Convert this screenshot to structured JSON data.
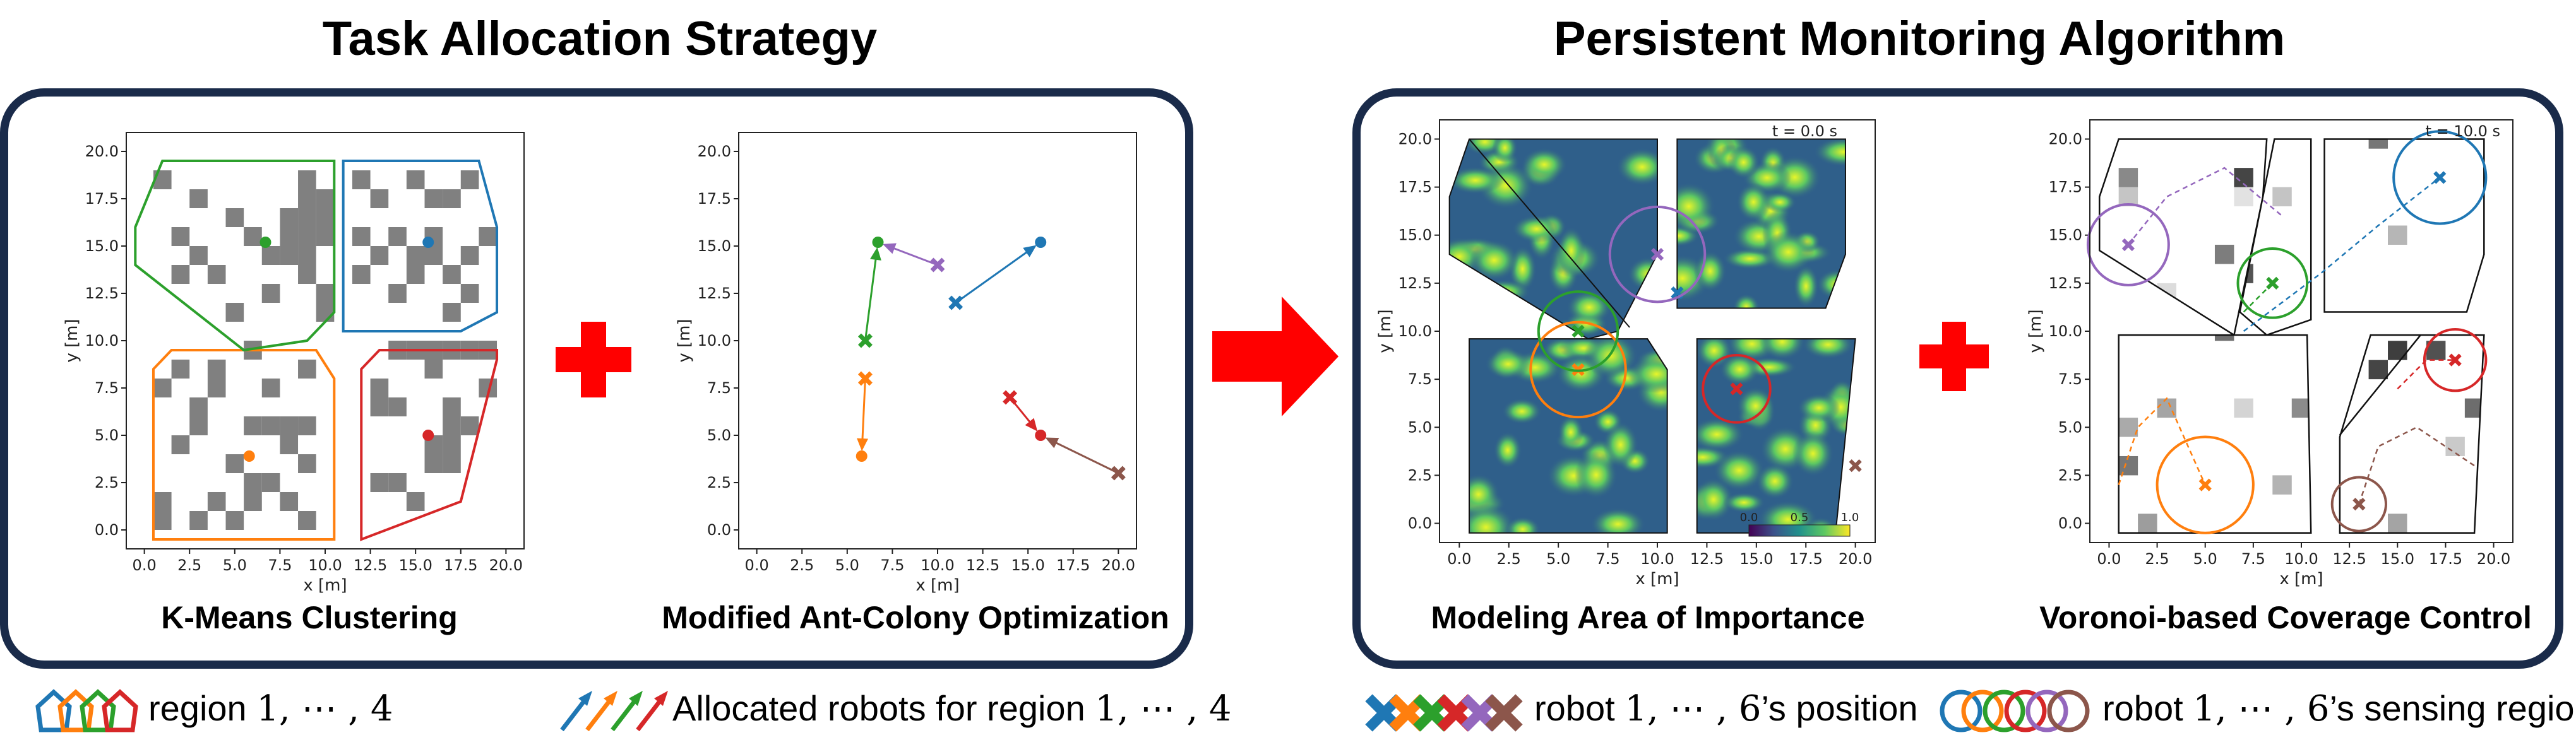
{
  "titles": {
    "left": "Task Allocation Strategy",
    "right": "Persistent Monitoring Algorithm"
  },
  "captions": {
    "kmeans": "K-Means Clustering",
    "aco": "Modified Ant-Colony Optimization",
    "importance": "Modeling Area of Importance",
    "voronoi": "Voronoi-based Coverage Control"
  },
  "time_labels": {
    "t0": "t = 0.0 s",
    "t10": "t = 10.0 s"
  },
  "colorbar": {
    "ticks": [
      "0.0",
      "0.5",
      "1.0"
    ]
  },
  "legend": {
    "region": "region",
    "region_math": "1, ⋯ , 4",
    "allocated": "Allocated robots for region",
    "allocated_math": "1, ⋯ , 4",
    "robot_pos": "robot",
    "robot_pos_math": "1, ⋯ , 6",
    "robot_pos_suffix": "’s position",
    "robot_sense": "robot",
    "robot_sense_math": "1, ⋯ , 6",
    "robot_sense_suffix": "’s sensing region"
  },
  "colors": {
    "blue": "#1f77b4",
    "orange": "#ff7f0e",
    "green": "#2ca02c",
    "red": "#d62728",
    "purple": "#9467bd",
    "brown": "#8c564b",
    "panel_border": "#1a2b4a",
    "arrow": "#ff0000",
    "plus": "#ff0000"
  },
  "chart_data": [
    {
      "type": "scatter",
      "id": "kmeans",
      "xlabel": "x [m]",
      "ylabel": "y [m]",
      "xlim": [
        -1,
        21
      ],
      "ylim": [
        -1,
        21
      ],
      "xticks": [
        0.0,
        2.5,
        5.0,
        7.5,
        10.0,
        12.5,
        15.0,
        17.5,
        20.0
      ],
      "yticks": [
        0.0,
        2.5,
        5.0,
        7.5,
        10.0,
        12.5,
        15.0,
        17.5,
        20.0
      ],
      "regions": [
        {
          "color": "blue",
          "polygon": [
            [
              11,
              19.5
            ],
            [
              18.5,
              19.5
            ],
            [
              19.5,
              16
            ],
            [
              19.5,
              11.5
            ],
            [
              17.5,
              10.5
            ],
            [
              11,
              10.5
            ]
          ]
        },
        {
          "color": "orange",
          "polygon": [
            [
              1.5,
              9.5
            ],
            [
              9.5,
              9.5
            ],
            [
              10.5,
              8
            ],
            [
              10.5,
              -0.5
            ],
            [
              0.5,
              -0.5
            ],
            [
              0.5,
              8.5
            ]
          ]
        },
        {
          "color": "green",
          "polygon": [
            [
              1,
              19.5
            ],
            [
              10.5,
              19.5
            ],
            [
              10.5,
              11.5
            ],
            [
              9,
              10
            ],
            [
              5.5,
              9.5
            ],
            [
              -0.5,
              14
            ],
            [
              -0.5,
              16
            ]
          ]
        },
        {
          "color": "red",
          "polygon": [
            [
              13,
              9.5
            ],
            [
              19.5,
              9.5
            ],
            [
              19.5,
              9
            ],
            [
              17.5,
              1.5
            ],
            [
              12,
              -0.5
            ],
            [
              12,
              8.5
            ]
          ]
        }
      ],
      "obstacles": [
        [
          1,
          18.5
        ],
        [
          3,
          17.5
        ],
        [
          5,
          16.5
        ],
        [
          6,
          15.5
        ],
        [
          7,
          14.5
        ],
        [
          8,
          16.5
        ],
        [
          8,
          15.5
        ],
        [
          8,
          14.5
        ],
        [
          9,
          18.5
        ],
        [
          9,
          17.5
        ],
        [
          9,
          16.5
        ],
        [
          9,
          15.5
        ],
        [
          9,
          14.5
        ],
        [
          9,
          13.5
        ],
        [
          10,
          17.5
        ],
        [
          10,
          16.5
        ],
        [
          10,
          15.5
        ],
        [
          2,
          15.5
        ],
        [
          3,
          14.5
        ],
        [
          4,
          13.5
        ],
        [
          7,
          12.5
        ],
        [
          10,
          12.5
        ],
        [
          10,
          11.5
        ],
        [
          5,
          11.5
        ],
        [
          2,
          13.5
        ],
        [
          12,
          18.5
        ],
        [
          13,
          17.5
        ],
        [
          15,
          18.5
        ],
        [
          16,
          17.5
        ],
        [
          17,
          17.5
        ],
        [
          18,
          18.5
        ],
        [
          12,
          15.5
        ],
        [
          13,
          14.5
        ],
        [
          14,
          15.5
        ],
        [
          15,
          14.5
        ],
        [
          15,
          13.5
        ],
        [
          16,
          15.5
        ],
        [
          16,
          14.5
        ],
        [
          17,
          13.5
        ],
        [
          18,
          14.5
        ],
        [
          19,
          15.5
        ],
        [
          12,
          13.5
        ],
        [
          14,
          12.5
        ],
        [
          17,
          11.5
        ],
        [
          18,
          12.5
        ],
        [
          1,
          7.5
        ],
        [
          2,
          8.5
        ],
        [
          3,
          6.5
        ],
        [
          4,
          7.5
        ],
        [
          4,
          8.5
        ],
        [
          6,
          9.5
        ],
        [
          7,
          7.5
        ],
        [
          9,
          8.5
        ],
        [
          3,
          5.5
        ],
        [
          6,
          5.5
        ],
        [
          7,
          5.5
        ],
        [
          8,
          5.5
        ],
        [
          9,
          5.5
        ],
        [
          8,
          4.5
        ],
        [
          9,
          3.5
        ],
        [
          2,
          4.5
        ],
        [
          5,
          3.5
        ],
        [
          1,
          1.5
        ],
        [
          3,
          0.5
        ],
        [
          4,
          1.5
        ],
        [
          6,
          2.5
        ],
        [
          7,
          2.5
        ],
        [
          9,
          0.5
        ],
        [
          1,
          0.5
        ],
        [
          5,
          0.5
        ],
        [
          8,
          1.5
        ],
        [
          6,
          1.5
        ],
        [
          14,
          9.5
        ],
        [
          15,
          9.5
        ],
        [
          16,
          9.5
        ],
        [
          17,
          9.5
        ],
        [
          18,
          9.5
        ],
        [
          19,
          9.5
        ],
        [
          13,
          7.5
        ],
        [
          13,
          6.5
        ],
        [
          14,
          6.5
        ],
        [
          16,
          8.5
        ],
        [
          17,
          6.5
        ],
        [
          17,
          5.5
        ],
        [
          17,
          4.5
        ],
        [
          17,
          3.5
        ],
        [
          16,
          4.5
        ],
        [
          16,
          3.5
        ],
        [
          13,
          2.5
        ],
        [
          14,
          2.5
        ],
        [
          15,
          1.5
        ],
        [
          18,
          5.5
        ],
        [
          19,
          7.5
        ]
      ],
      "centroids": [
        {
          "color": "green",
          "x": 6.7,
          "y": 15.2
        },
        {
          "color": "blue",
          "x": 15.7,
          "y": 15.2
        },
        {
          "color": "orange",
          "x": 5.8,
          "y": 3.9
        },
        {
          "color": "red",
          "x": 15.7,
          "y": 5.0
        }
      ]
    },
    {
      "type": "scatter",
      "id": "aco",
      "xlabel": "x [m]",
      "ylabel": "y [m]",
      "xlim": [
        -1,
        21
      ],
      "ylim": [
        -1,
        21
      ],
      "xticks": [
        0.0,
        2.5,
        5.0,
        7.5,
        10.0,
        12.5,
        15.0,
        17.5,
        20.0
      ],
      "yticks": [
        0.0,
        2.5,
        5.0,
        7.5,
        10.0,
        12.5,
        15.0,
        17.5,
        20.0
      ],
      "robots": [
        {
          "color": "blue",
          "x": 11.0,
          "y": 12.0
        },
        {
          "color": "orange",
          "x": 6.0,
          "y": 8.0
        },
        {
          "color": "green",
          "x": 6.0,
          "y": 10.0
        },
        {
          "color": "purple",
          "x": 10.0,
          "y": 14.0
        },
        {
          "color": "red",
          "x": 14.0,
          "y": 7.0
        },
        {
          "color": "brown",
          "x": 20.0,
          "y": 3.0
        }
      ],
      "arrows": [
        {
          "color": "blue",
          "from": [
            11.0,
            12.0
          ],
          "to": [
            15.7,
            15.2
          ]
        },
        {
          "color": "orange",
          "from": [
            6.0,
            8.0
          ],
          "to": [
            5.8,
            3.9
          ]
        },
        {
          "color": "green",
          "from": [
            6.0,
            10.0
          ],
          "to": [
            6.7,
            15.2
          ]
        },
        {
          "color": "purple",
          "from": [
            10.0,
            14.0
          ],
          "to": [
            6.7,
            15.2
          ]
        },
        {
          "color": "red",
          "from": [
            14.0,
            7.0
          ],
          "to": [
            15.7,
            5.0
          ]
        },
        {
          "color": "brown",
          "from": [
            20.0,
            3.0
          ],
          "to": [
            15.7,
            5.0
          ]
        }
      ],
      "targets": [
        {
          "color": "blue",
          "x": 15.7,
          "y": 15.2
        },
        {
          "color": "orange",
          "x": 5.8,
          "y": 3.9
        },
        {
          "color": "green",
          "x": 6.7,
          "y": 15.2
        },
        {
          "color": "red",
          "x": 15.7,
          "y": 5.0
        }
      ]
    },
    {
      "type": "heatmap",
      "id": "importance",
      "xlabel": "x [m]",
      "ylabel": "y [m]",
      "xlim": [
        -1,
        21
      ],
      "ylim": [
        -1,
        21
      ],
      "xticks": [
        0.0,
        2.5,
        5.0,
        7.5,
        10.0,
        12.5,
        15.0,
        17.5,
        20.0
      ],
      "yticks": [
        0.0,
        2.5,
        5.0,
        7.5,
        10.0,
        12.5,
        15.0,
        17.5,
        20.0
      ],
      "cells": [
        {
          "polygon": [
            [
              0.5,
              20
            ],
            [
              10,
              20
            ],
            [
              10,
              14
            ],
            [
              8,
              10
            ],
            [
              6.5,
              9.6
            ],
            [
              -0.5,
              14
            ],
            [
              -0.5,
              17
            ]
          ]
        },
        {
          "polygon": [
            [
              11,
              20
            ],
            [
              19.5,
              20
            ],
            [
              19.5,
              14
            ],
            [
              18.5,
              11.2
            ],
            [
              11,
              11.2
            ]
          ]
        },
        {
          "polygon": [
            [
              0.5,
              9.6
            ],
            [
              9.5,
              9.6
            ],
            [
              10.5,
              8
            ],
            [
              10.5,
              -0.5
            ],
            [
              0.5,
              -0.5
            ],
            [
              0.5,
              7.5
            ]
          ]
        },
        {
          "polygon": [
            [
              12,
              9.6
            ],
            [
              20,
              9.6
            ],
            [
              19,
              -0.5
            ],
            [
              12,
              -0.5
            ]
          ]
        }
      ],
      "robots": [
        {
          "color": "blue",
          "x": 11.0,
          "y": 12.0,
          "radius": 0
        },
        {
          "color": "orange",
          "x": 6.0,
          "y": 8.0,
          "radius": 2.4
        },
        {
          "color": "green",
          "x": 6.0,
          "y": 10.0,
          "radius": 2.0
        },
        {
          "color": "purple",
          "x": 10.0,
          "y": 14.0,
          "radius": 2.4
        },
        {
          "color": "red",
          "x": 14.0,
          "y": 7.0,
          "radius": 1.7
        },
        {
          "color": "brown",
          "x": 20.0,
          "y": 3.0,
          "radius": 0
        }
      ]
    },
    {
      "type": "heatmap",
      "id": "voronoi",
      "xlabel": "x [m]",
      "ylabel": "y [m]",
      "xlim": [
        -1,
        21
      ],
      "ylim": [
        -1,
        21
      ],
      "xticks": [
        0.0,
        2.5,
        5.0,
        7.5,
        10.0,
        12.5,
        15.0,
        17.5,
        20.0
      ],
      "yticks": [
        0.0,
        2.5,
        5.0,
        7.5,
        10.0,
        12.5,
        15.0,
        17.5,
        20.0
      ],
      "robots": [
        {
          "color": "blue",
          "x": 17.2,
          "y": 18.0,
          "radius": 2.4
        },
        {
          "color": "orange",
          "x": 5.0,
          "y": 2.0,
          "radius": 2.5
        },
        {
          "color": "green",
          "x": 8.5,
          "y": 12.5,
          "radius": 1.8
        },
        {
          "color": "purple",
          "x": 1.0,
          "y": 14.5,
          "radius": 2.1
        },
        {
          "color": "red",
          "x": 18.0,
          "y": 8.5,
          "radius": 1.6
        },
        {
          "color": "brown",
          "x": 13.0,
          "y": 1.0,
          "radius": 1.4
        }
      ]
    }
  ]
}
